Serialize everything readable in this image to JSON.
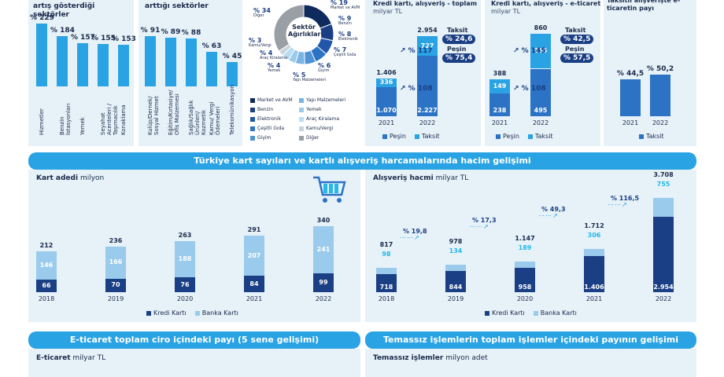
{
  "colors": {
    "dark": "#1b3f84",
    "mid": "#2c73c5",
    "light": "#9acbec",
    "accent": "#29a3e3",
    "cyan": "#25b8e8"
  },
  "panel1": {
    "title": "Harcamaların en fazla artış gösterdiği sektörler",
    "values": [
      "% 229",
      "% 184",
      "% 157",
      "% 155",
      "% 153"
    ],
    "nums": [
      229,
      184,
      157,
      155,
      153
    ],
    "labels": [
      "Hizmetler",
      "Benzin İstasyonları",
      "Yemek",
      "Seyahat Acenteleri / Taşımacılık",
      "Konaklama"
    ]
  },
  "panel2": {
    "title": "Harcamaların en az arttığı sektörler",
    "values": [
      "% 91",
      "% 89",
      "% 88",
      "% 63",
      "% 45"
    ],
    "nums": [
      91,
      89,
      88,
      63,
      45
    ],
    "labels": [
      "Kulüp/Dernek/ Sosyal Hizmet",
      "Eğitim/Kırtasiye/ Ofis Malzemesi",
      "Sağlık/Sağlık Ürünleri/ Kozmetik",
      "Kamu/ Vergi Ödemeleri",
      "Telekomünikasyon"
    ]
  },
  "donut": {
    "title": "Sektör Ağırlıkları",
    "callouts": [
      {
        "pct": "% 34",
        "name": "Diğer"
      },
      {
        "pct": "% 19",
        "name": "Market ve AVM"
      },
      {
        "pct": "% 9",
        "name": "Benzin"
      },
      {
        "pct": "% 8",
        "name": "Elektronik"
      },
      {
        "pct": "% 7",
        "name": "Çeşitli Gıda"
      },
      {
        "pct": "% 6",
        "name": "Giyim"
      },
      {
        "pct": "% 5",
        "name": "Yapı Malzemeleri"
      },
      {
        "pct": "% 4",
        "name": "Yemek"
      },
      {
        "pct": "% 4",
        "name": "Araç Kiralama"
      },
      {
        "pct": "% 3",
        "name": "Kamu/Vergi"
      }
    ],
    "shares": [
      19,
      9,
      8,
      7,
      6,
      5,
      4,
      4,
      3,
      34
    ],
    "sliceColors": [
      "#0f2a5c",
      "#1b3f84",
      "#2057a8",
      "#2c73c5",
      "#4f93d6",
      "#7ab3e4",
      "#9acbec",
      "#b9dcf3",
      "#c9d3dc",
      "#9a9fa6"
    ],
    "legend": [
      "Market ve AVM",
      "Benzin",
      "Elektronik",
      "Çeşitli Gıda",
      "Giyim",
      "Yapı Malzemeleri",
      "Yemek",
      "Araç Kiralama",
      "Kamu/Vergi",
      "Diğer"
    ]
  },
  "p4": {
    "title": "Kredi kartı, alışveriş - toplam",
    "unit": "milyar TL",
    "years": [
      "2021",
      "2022"
    ],
    "totals": [
      "1.406",
      "2.954"
    ],
    "pesin": [
      "1.070",
      "2.227"
    ],
    "taksit": [
      "336",
      "727"
    ],
    "pesinVals": [
      1070,
      2227
    ],
    "taksitVals": [
      336,
      727
    ],
    "growthTotal": "% 117",
    "growthPesin": "% 108",
    "taksitLabel": "Taksit",
    "taksitPct": "% 24,6",
    "pesinLabel": "Peşin",
    "pesinPct": "% 75,4",
    "legend": [
      "Peşin",
      "Taksit"
    ]
  },
  "p5": {
    "title": "Kredi kartı, alışveriş - e-ticaret",
    "unit": "milyar TL",
    "years": [
      "2021",
      "2022"
    ],
    "totals": [
      "388",
      "860"
    ],
    "pesin": [
      "238",
      "495"
    ],
    "taksit": [
      "149",
      "365"
    ],
    "pesinVals": [
      238,
      495
    ],
    "taksitVals": [
      149,
      365
    ],
    "growthTotal": "% 145",
    "growthPesin": "% 108",
    "taksitLabel": "Taksit",
    "taksitPct": "% 42,5",
    "pesinLabel": "Peşin",
    "pesinPct": "% 57,5",
    "legend": [
      "Peşin",
      "Taksit"
    ]
  },
  "p6": {
    "title": "Taksitli alışverişte e-ticaretin payı",
    "years": [
      "2021",
      "2022"
    ],
    "values": [
      "% 44,5",
      "% 50,2"
    ],
    "nums": [
      44.5,
      50.2
    ],
    "legend": "Taksit"
  },
  "banner1": "Türkiye kart sayıları ve kartlı alışveriş harcamalarında hacim gelişimi",
  "cards": {
    "title": "Kart adedi",
    "unit": "milyon",
    "years": [
      "2018",
      "2019",
      "2020",
      "2021",
      "2022"
    ],
    "totals": [
      "212",
      "236",
      "263",
      "291",
      "340"
    ],
    "kredi": [
      "66",
      "70",
      "76",
      "84",
      "99"
    ],
    "banka": [
      "146",
      "166",
      "188",
      "207",
      "241"
    ],
    "krediVals": [
      66,
      70,
      76,
      84,
      99
    ],
    "bankaVals": [
      146,
      166,
      188,
      207,
      241
    ],
    "legend": [
      "Kredi Kartı",
      "Banka Kartı"
    ]
  },
  "volume": {
    "title": "Alışveriş hacmi",
    "unit": "milyar TL",
    "years": [
      "2018",
      "2019",
      "2020",
      "2021",
      "2022"
    ],
    "totals": [
      "817",
      "978",
      "1.147",
      "1.712",
      "3.708"
    ],
    "kredi": [
      "718",
      "844",
      "958",
      "1.406",
      "2.954"
    ],
    "banka": [
      "98",
      "134",
      "189",
      "306",
      "755"
    ],
    "krediVals": [
      718,
      844,
      958,
      1406,
      2954
    ],
    "bankaVals": [
      98,
      134,
      189,
      306,
      755
    ],
    "growth": [
      "% 19,8",
      "% 17,3",
      "% 49,3",
      "% 116,5"
    ],
    "legend": [
      "Kredi Kartı",
      "Banka Kartı"
    ]
  },
  "banner2": "E-ticaret toplam ciro içindeki payı (5 sene gelişimi)",
  "banner3": "Temassız işlemlerin toplam işlemler içindeki payının gelişimi",
  "ecom": {
    "title": "E-ticaret",
    "unit": "milyar TL"
  },
  "contactless": {
    "title": "Temassız işlemler",
    "unit": "milyon adet"
  },
  "chart_data": [
    {
      "type": "bar",
      "title": "Harcamaların en fazla artış gösterdiği sektörler",
      "categories": [
        "Hizmetler",
        "Benzin İstasyonları",
        "Yemek",
        "Seyahat Acenteleri / Taşımacılık",
        "Konaklama"
      ],
      "values": [
        229,
        184,
        157,
        155,
        153
      ]
    },
    {
      "type": "bar",
      "title": "Harcamaların en az arttığı sektörler",
      "categories": [
        "Kulüp/Dernek/ Sosyal Hizmet",
        "Eğitim/Kırtasiye/ Ofis Malzemesi",
        "Sağlık/Sağlık Ürünleri/ Kozmetik",
        "Kamu/ Vergi Ödemeleri",
        "Telekomünikasyon"
      ],
      "values": [
        91,
        89,
        88,
        63,
        45
      ]
    },
    {
      "type": "pie",
      "title": "Sektör Ağırlıkları",
      "categories": [
        "Market ve AVM",
        "Benzin",
        "Elektronik",
        "Çeşitli Gıda",
        "Giyim",
        "Yapı Malzemeleri",
        "Yemek",
        "Araç Kiralama",
        "Kamu/Vergi",
        "Diğer"
      ],
      "values": [
        19,
        9,
        8,
        7,
        6,
        5,
        4,
        4,
        3,
        34
      ]
    },
    {
      "type": "bar",
      "title": "Kredi kartı, alışveriş - toplam",
      "categories": [
        "2021",
        "2022"
      ],
      "series": [
        {
          "name": "Peşin",
          "values": [
            1070,
            2227
          ]
        },
        {
          "name": "Taksit",
          "values": [
            336,
            727
          ]
        }
      ]
    },
    {
      "type": "bar",
      "title": "Kredi kartı, alışveriş - e-ticaret",
      "categories": [
        "2021",
        "2022"
      ],
      "series": [
        {
          "name": "Peşin",
          "values": [
            238,
            495
          ]
        },
        {
          "name": "Taksit",
          "values": [
            149,
            365
          ]
        }
      ]
    },
    {
      "type": "bar",
      "title": "Taksitli alışverişte e-ticaretin payı",
      "categories": [
        "2021",
        "2022"
      ],
      "series": [
        {
          "name": "Taksit",
          "values": [
            44.5,
            50.2
          ]
        }
      ]
    },
    {
      "type": "bar",
      "title": "Kart adedi",
      "categories": [
        "2018",
        "2019",
        "2020",
        "2021",
        "2022"
      ],
      "series": [
        {
          "name": "Kredi Kartı",
          "values": [
            66,
            70,
            76,
            84,
            99
          ]
        },
        {
          "name": "Banka Kartı",
          "values": [
            146,
            166,
            188,
            207,
            241
          ]
        }
      ]
    },
    {
      "type": "bar",
      "title": "Alışveriş hacmi",
      "categories": [
        "2018",
        "2019",
        "2020",
        "2021",
        "2022"
      ],
      "series": [
        {
          "name": "Kredi Kartı",
          "values": [
            718,
            844,
            958,
            1406,
            2954
          ]
        },
        {
          "name": "Banka Kartı",
          "values": [
            98,
            134,
            189,
            306,
            755
          ]
        }
      ]
    }
  ]
}
